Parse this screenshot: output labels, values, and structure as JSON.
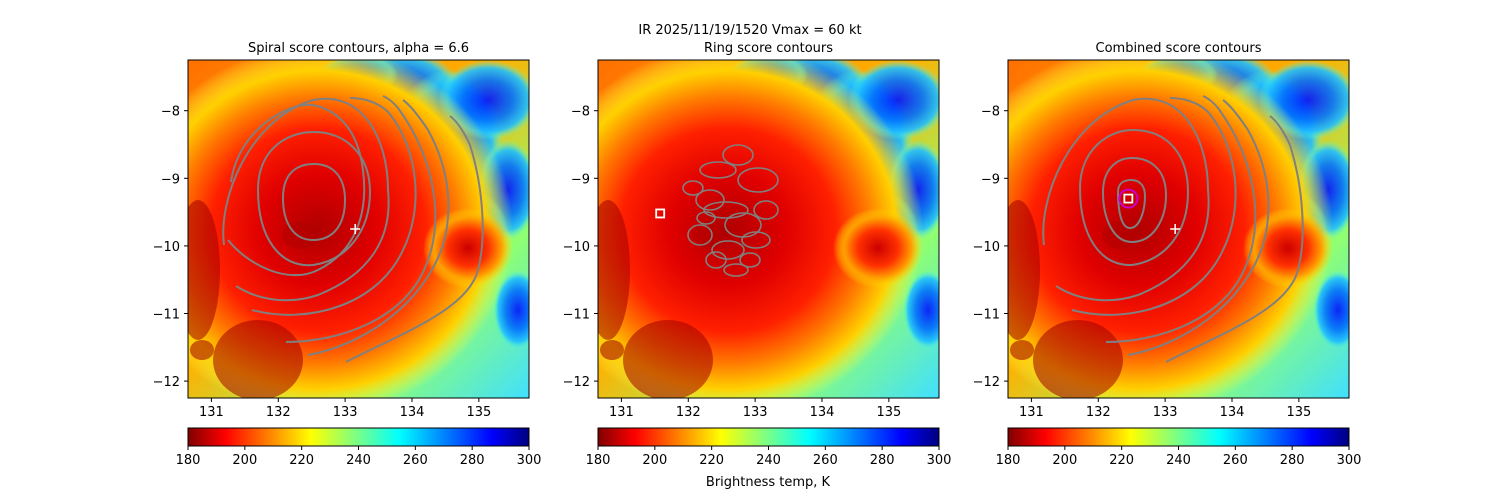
{
  "figure": {
    "suptitle_line1": "IR  2025/11/19/1520    Vmax = 60 kt",
    "colorbar_label": "Brightness temp, K"
  },
  "panels": [
    {
      "title": "Spiral score contours, alpha =  6.6",
      "center_marker": "plus",
      "best_marker": "none"
    },
    {
      "title": "Ring score contours",
      "center_marker": "none",
      "best_marker": "square"
    },
    {
      "title": "Combined score contours",
      "center_marker": "plus",
      "best_marker": "square-circle"
    }
  ],
  "colors": {
    "contour": "#808080",
    "center_marker": "#ffffff",
    "ring_marker": "#cc00cc",
    "colormap": [
      "#800000",
      "#ff0000",
      "#ffff00",
      "#00ffff",
      "#0000ff",
      "#000080"
    ]
  },
  "chart_data": {
    "type": "heatmap",
    "x_ticks": [
      131,
      132,
      133,
      134,
      135
    ],
    "y_ticks": [
      -8,
      -9,
      -10,
      -11,
      -12
    ],
    "xlim": [
      130.65,
      135.75
    ],
    "ylim": [
      -12.25,
      -7.25
    ],
    "colorbar": {
      "min": 180,
      "max": 300,
      "ticks": [
        180,
        200,
        220,
        240,
        260,
        280,
        300
      ]
    },
    "storm_center_plus": {
      "lon": 133.15,
      "lat": -9.75
    },
    "ring_best_square": {
      "lon": 131.58,
      "lat": -9.52
    },
    "combined_best_square": {
      "lon": 132.45,
      "lat": -9.3
    }
  }
}
